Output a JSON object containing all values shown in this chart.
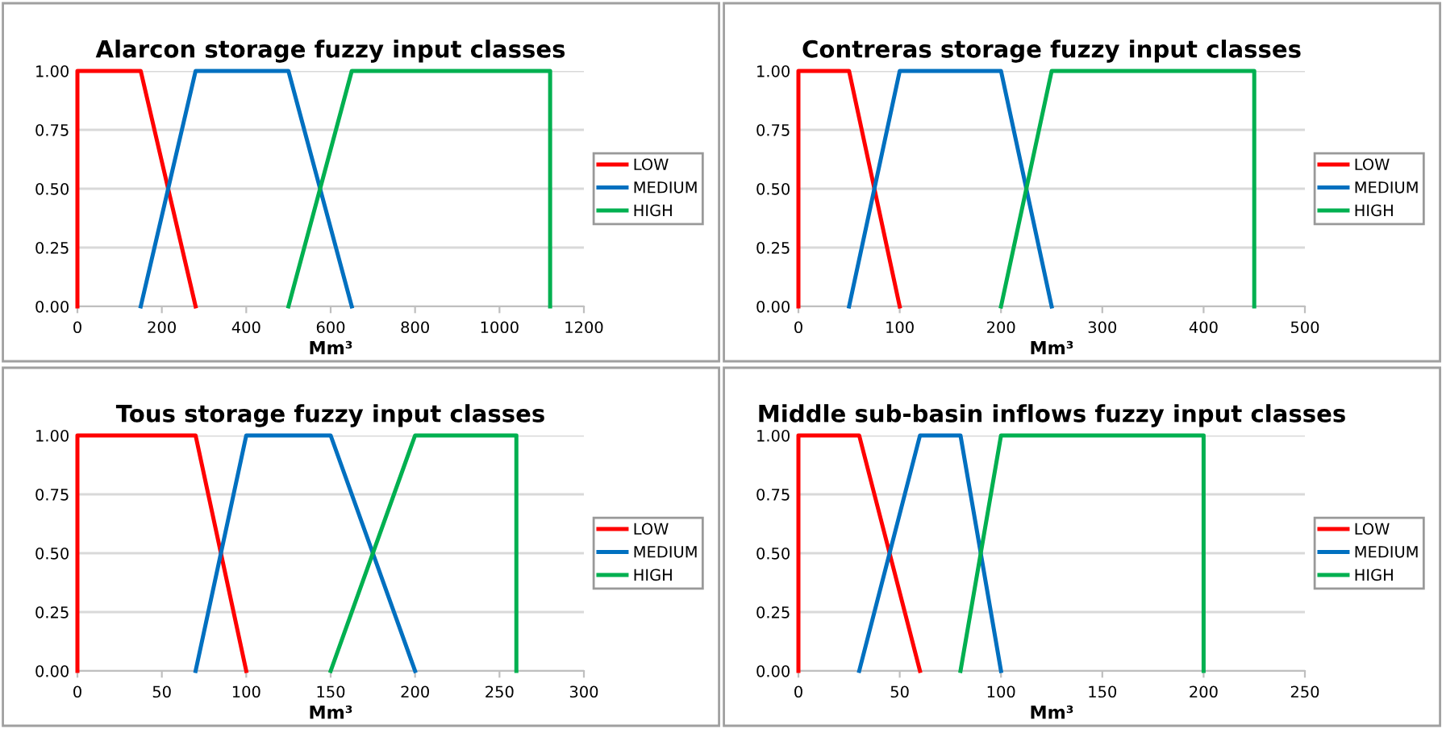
{
  "chart_data": [
    {
      "type": "line",
      "title": "Alarcon storage fuzzy input classes",
      "xlabel": "Mm³",
      "xlim": [
        0,
        1200
      ],
      "xticks": [
        0,
        200,
        400,
        600,
        800,
        1000,
        1200
      ],
      "ylim": [
        0,
        1
      ],
      "yticks": [
        {
          "value": 0,
          "label": "0.00"
        },
        {
          "value": 0.25,
          "label": "0.25"
        },
        {
          "value": 0.5,
          "label": "0.50"
        },
        {
          "value": 0.75,
          "label": "0.75"
        },
        {
          "value": 1,
          "label": "1.00"
        }
      ],
      "grid": "y",
      "legend": "right",
      "marker": "none",
      "line_style": "solid",
      "series": [
        {
          "name": "LOW",
          "color": "#ff0000",
          "x": [
            0,
            0,
            150,
            280
          ],
          "values": [
            0,
            1,
            1,
            0
          ]
        },
        {
          "name": "MEDIUM",
          "color": "#0070c0",
          "x": [
            150,
            280,
            500,
            650
          ],
          "values": [
            0,
            1,
            1,
            0
          ]
        },
        {
          "name": "HIGH",
          "color": "#00b050",
          "x": [
            500,
            650,
            1120,
            1120
          ],
          "values": [
            0,
            1,
            1,
            0
          ]
        }
      ]
    },
    {
      "type": "line",
      "title": "Contreras storage fuzzy input classes",
      "xlabel": "Mm³",
      "xlim": [
        0,
        500
      ],
      "xticks": [
        0,
        100,
        200,
        300,
        400,
        500
      ],
      "ylim": [
        0,
        1
      ],
      "yticks": [
        {
          "value": 0,
          "label": "0.00"
        },
        {
          "value": 0.25,
          "label": "0.25"
        },
        {
          "value": 0.5,
          "label": "0.50"
        },
        {
          "value": 0.75,
          "label": "0.75"
        },
        {
          "value": 1,
          "label": "1.00"
        }
      ],
      "grid": "y",
      "legend": "right",
      "marker": "none",
      "line_style": "solid",
      "series": [
        {
          "name": "LOW",
          "color": "#ff0000",
          "x": [
            0,
            0,
            50,
            100
          ],
          "values": [
            0,
            1,
            1,
            0
          ]
        },
        {
          "name": "MEDIUM",
          "color": "#0070c0",
          "x": [
            50,
            100,
            200,
            250
          ],
          "values": [
            0,
            1,
            1,
            0
          ]
        },
        {
          "name": "HIGH",
          "color": "#00b050",
          "x": [
            200,
            250,
            450,
            450
          ],
          "values": [
            0,
            1,
            1,
            0
          ]
        }
      ]
    },
    {
      "type": "line",
      "title": "Tous storage fuzzy input classes",
      "xlabel": "Mm³",
      "xlim": [
        0,
        300
      ],
      "xticks": [
        0,
        50,
        100,
        150,
        200,
        250,
        300
      ],
      "ylim": [
        0,
        1
      ],
      "yticks": [
        {
          "value": 0,
          "label": "0.00"
        },
        {
          "value": 0.25,
          "label": "0.25"
        },
        {
          "value": 0.5,
          "label": "0.50"
        },
        {
          "value": 0.75,
          "label": "0.75"
        },
        {
          "value": 1,
          "label": "1.00"
        }
      ],
      "grid": "y",
      "legend": "right",
      "marker": "none",
      "line_style": "solid",
      "series": [
        {
          "name": "LOW",
          "color": "#ff0000",
          "x": [
            0,
            0,
            70,
            100
          ],
          "values": [
            0,
            1,
            1,
            0
          ]
        },
        {
          "name": "MEDIUM",
          "color": "#0070c0",
          "x": [
            70,
            100,
            150,
            200
          ],
          "values": [
            0,
            1,
            1,
            0
          ]
        },
        {
          "name": "HIGH",
          "color": "#00b050",
          "x": [
            150,
            200,
            260,
            260
          ],
          "values": [
            0,
            1,
            1,
            0
          ]
        }
      ]
    },
    {
      "type": "line",
      "title": "Middle sub-basin inflows fuzzy input classes",
      "xlabel": "Mm³",
      "xlim": [
        0,
        250
      ],
      "xticks": [
        0,
        50,
        100,
        150,
        200,
        250
      ],
      "ylim": [
        0,
        1
      ],
      "yticks": [
        {
          "value": 0,
          "label": "0.00"
        },
        {
          "value": 0.25,
          "label": "0.25"
        },
        {
          "value": 0.5,
          "label": "0.50"
        },
        {
          "value": 0.75,
          "label": "0.75"
        },
        {
          "value": 1,
          "label": "1.00"
        }
      ],
      "grid": "y",
      "legend": "right",
      "marker": "none",
      "line_style": "solid",
      "series": [
        {
          "name": "LOW",
          "color": "#ff0000",
          "x": [
            0,
            0,
            30,
            60
          ],
          "values": [
            0,
            1,
            1,
            0
          ]
        },
        {
          "name": "MEDIUM",
          "color": "#0070c0",
          "x": [
            30,
            60,
            80,
            100
          ],
          "values": [
            0,
            1,
            1,
            0
          ]
        },
        {
          "name": "HIGH",
          "color": "#00b050",
          "x": [
            80,
            100,
            200,
            200
          ],
          "values": [
            0,
            1,
            1,
            0
          ]
        }
      ]
    }
  ]
}
